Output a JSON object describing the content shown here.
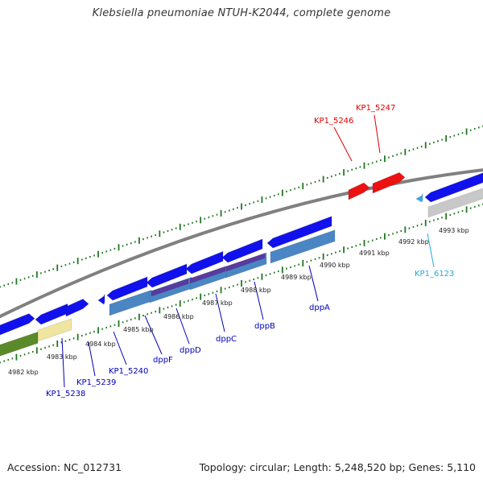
{
  "title": "Klebsiella pneumoniae NTUH-K2044, complete genome",
  "footer": {
    "accession": "Accession: NC_012731",
    "summary": "Topology: circular; Length: 5,248,520 bp; Genes: 5,110"
  },
  "colors": {
    "backbone": "#808080",
    "ruler_ticks": "#227722",
    "forward_gene": "#1111ee",
    "cds_band": "#4a86c4",
    "highlight_gene": "#ee1111",
    "light_blue_gene": "#33aaee",
    "grey_band": "#c8c8c8",
    "olive_band": "#5a8a2a",
    "yellow_band": "#efe4a0",
    "purple_band": "#5a3aa0",
    "label_blue": "#0000bb",
    "label_red": "#dd0000",
    "label_cyan": "#22aadd"
  },
  "kbp_labels": [
    "4982 kbp",
    "4983 kbp",
    "4984 kbp",
    "4985 kbp",
    "4986 kbp",
    "4987 kbp",
    "4988 kbp",
    "4989 kbp",
    "4990 kbp",
    "4991 kbp",
    "4992 kbp",
    "4993 kbp"
  ],
  "gene_labels": [
    "KP1_5238",
    "KP1_5239",
    "KP1_5240",
    "dppF",
    "dppD",
    "dppC",
    "dppB",
    "dppA",
    "KP1_6123",
    "KP1_5246",
    "KP1_5247"
  ]
}
